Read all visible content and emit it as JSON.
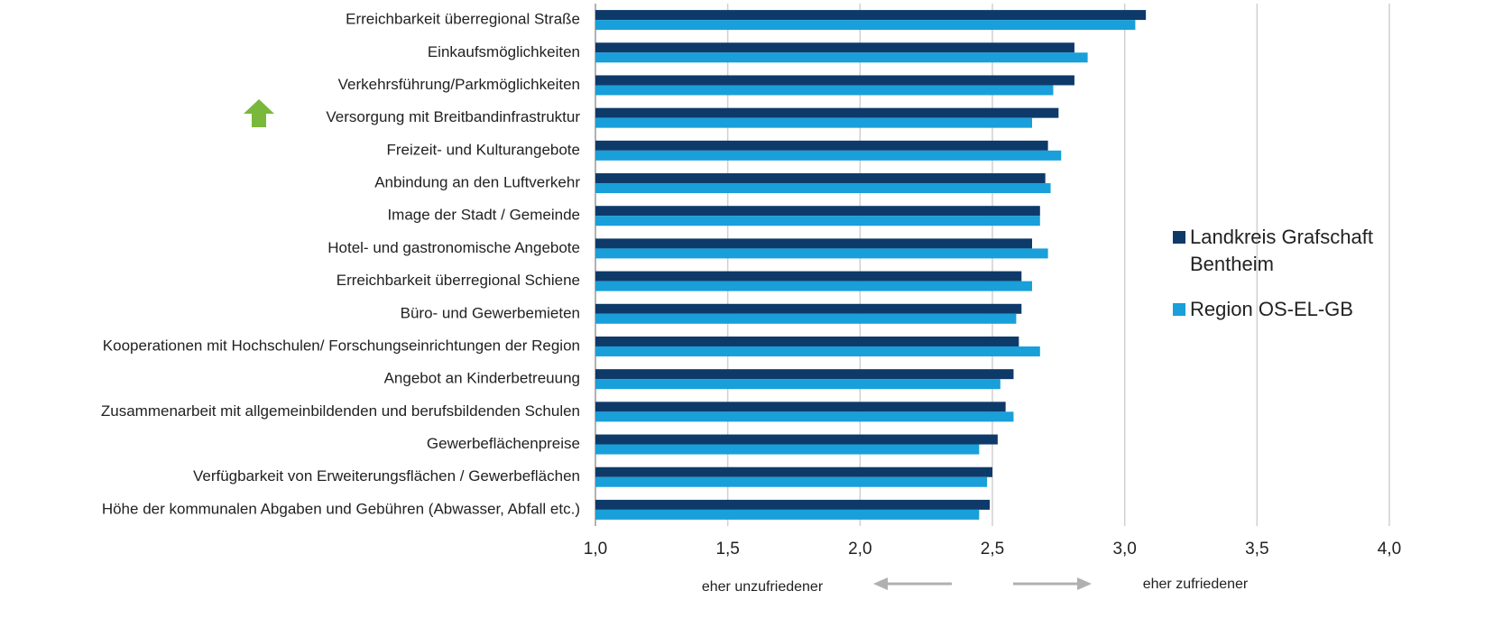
{
  "chart_data": {
    "type": "hbar",
    "categories": [
      "Erreichbarkeit überregional Straße",
      "Einkaufsmöglichkeiten",
      "Verkehrsführung/Parkmöglichkeiten",
      "Versorgung mit Breitbandinfrastruktur",
      "Freizeit- und Kulturangebote",
      "Anbindung an den Luftverkehr",
      "Image der Stadt / Gemeinde",
      "Hotel- und gastronomische Angebote",
      "Erreichbarkeit überregional Schiene",
      "Büro- und Gewerbemieten",
      "Kooperationen mit Hochschulen/ Forschungseinrichtungen der Region",
      "Angebot an Kinderbetreuung",
      "Zusammenarbeit mit allgemeinbildenden und berufsbildenden Schulen",
      "Gewerbeflächenpreise",
      "Verfügbarkeit von Erweiterungsflächen / Gewerbeflächen",
      "Höhe der kommunalen Abgaben und Gebühren (Abwasser, Abfall etc.)"
    ],
    "series": [
      {
        "name": "Landkreis Grafschaft Bentheim",
        "color": "#0e3a6a",
        "values": [
          3.08,
          2.81,
          2.81,
          2.75,
          2.71,
          2.7,
          2.68,
          2.65,
          2.61,
          2.61,
          2.6,
          2.58,
          2.55,
          2.52,
          2.5,
          2.49
        ]
      },
      {
        "name": "Region OS-EL-GB",
        "color": "#199fd9",
        "values": [
          3.04,
          2.86,
          2.73,
          2.65,
          2.76,
          2.72,
          2.68,
          2.71,
          2.65,
          2.59,
          2.68,
          2.53,
          2.58,
          2.45,
          2.48,
          2.45
        ]
      }
    ],
    "xlim": [
      1.0,
      4.0
    ],
    "xticks": [
      {
        "value": 1.0,
        "label": "1,0"
      },
      {
        "value": 1.5,
        "label": "1,5"
      },
      {
        "value": 2.0,
        "label": "2,0"
      },
      {
        "value": 2.5,
        "label": "2,5"
      },
      {
        "value": 3.0,
        "label": "3,0"
      },
      {
        "value": 3.5,
        "label": "3,5"
      },
      {
        "value": 4.0,
        "label": "4,0"
      }
    ],
    "grid": true,
    "annotations": [
      "eher unzufriedener",
      "eher zufriedener"
    ]
  }
}
